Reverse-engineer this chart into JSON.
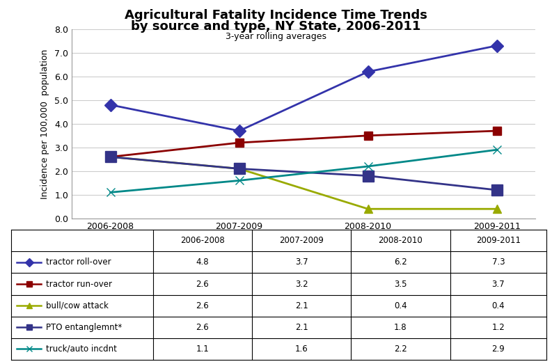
{
  "title_line1": "Agricultural Fatality Incidence Time Trends",
  "title_line2": "by source and type, NY State, 2006-2011",
  "subtitle": "3-year rolling averages",
  "ylabel": "Incidence per 100,000  population",
  "x_labels": [
    "2006-2008",
    "2007-2009",
    "2008-2010",
    "2009-2011"
  ],
  "x_values": [
    0,
    1,
    2,
    3
  ],
  "ylim": [
    0.0,
    8.0
  ],
  "yticks": [
    0.0,
    1.0,
    2.0,
    3.0,
    4.0,
    5.0,
    6.0,
    7.0,
    8.0
  ],
  "series": [
    {
      "label": "tractor roll-over",
      "values": [
        4.8,
        3.7,
        6.2,
        7.3
      ],
      "color": "#3333AA",
      "marker": "D",
      "marker_size": 9,
      "linewidth": 2.0
    },
    {
      "label": "tractor run-over",
      "values": [
        2.6,
        3.2,
        3.5,
        3.7
      ],
      "color": "#8B0000",
      "marker": "s",
      "marker_size": 9,
      "linewidth": 2.0
    },
    {
      "label": "bull/cow attack",
      "values": [
        2.6,
        2.1,
        0.4,
        0.4
      ],
      "color": "#99AA00",
      "marker": "^",
      "marker_size": 9,
      "linewidth": 2.0
    },
    {
      "label": "PTO entanglemnt*",
      "values": [
        2.6,
        2.1,
        1.8,
        1.2
      ],
      "color": "#333388",
      "marker": "s",
      "marker_size": 12,
      "linewidth": 2.0
    },
    {
      "label": "truck/auto incdnt",
      "values": [
        1.1,
        1.6,
        2.2,
        2.9
      ],
      "color": "#008888",
      "marker": "x",
      "marker_size": 9,
      "linewidth": 2.0
    }
  ],
  "table_data": [
    [
      "",
      "2006-2008",
      "2007-2009",
      "2008-2010",
      "2009-2011"
    ],
    [
      "tractor roll-over",
      "4.8",
      "3.7",
      "6.2",
      "7.3"
    ],
    [
      "tractor run-over",
      "2.6",
      "3.2",
      "3.5",
      "3.7"
    ],
    [
      "bull/cow attack",
      "2.6",
      "2.1",
      "0.4",
      "0.4"
    ],
    [
      "PTO entanglemnt*",
      "2.6",
      "2.1",
      "1.8",
      "1.2"
    ],
    [
      "truck/auto incdnt",
      "1.1",
      "1.6",
      "2.2",
      "2.9"
    ]
  ],
  "background_color": "#FFFFFF",
  "grid_color": "#CCCCCC"
}
